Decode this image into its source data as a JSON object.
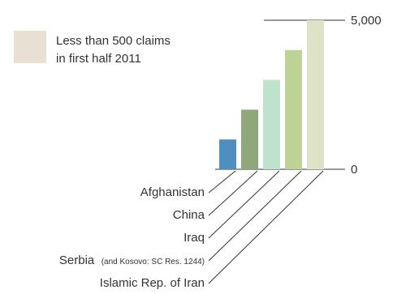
{
  "chart_data": {
    "type": "bar",
    "categories": [
      "Afghanistan",
      "China",
      "Iraq",
      "Serbia",
      "Islamic Rep. of Iran"
    ],
    "category_notes": [
      "",
      "",
      "",
      "(and Kosovo: SC Res. 1244)",
      ""
    ],
    "series": [
      {
        "values": [
          1000,
          2000,
          3000,
          4000,
          5000
        ],
        "colors": [
          "#4f8fc0",
          "#8fa87a",
          "#bfe2cc",
          "#bcd395",
          "#dee2c6"
        ]
      }
    ],
    "y_ticks": [
      0,
      5000
    ],
    "y_tick_labels": [
      "0",
      "5,000"
    ],
    "ylim": [
      0,
      5000
    ],
    "legend": {
      "color": "#e8e0d2",
      "lines": [
        "Less than 500 claims",
        "in first half 2011"
      ],
      "position": "top-left"
    },
    "grid": false
  }
}
